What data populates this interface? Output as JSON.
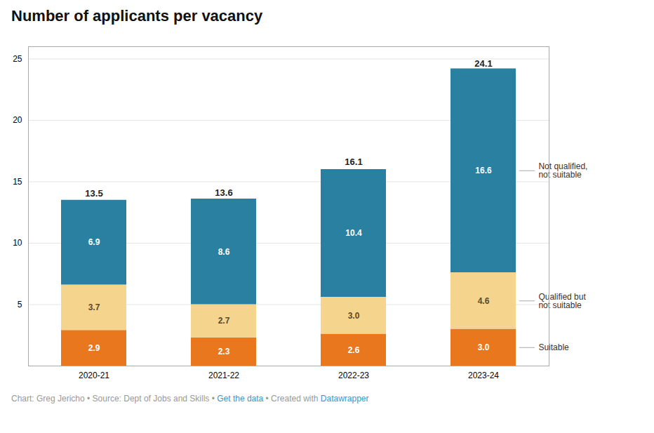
{
  "chart_data": {
    "type": "bar",
    "stacked": true,
    "title": "Number of applicants per vacancy",
    "categories": [
      "2020-21",
      "2021-22",
      "2022-23",
      "2023-24"
    ],
    "series": [
      {
        "name": "Suitable",
        "color": "#e8771e",
        "values": [
          2.9,
          2.3,
          2.6,
          3.0
        ],
        "value_labels": [
          "2.9",
          "2.3",
          "2.6",
          "3.0"
        ]
      },
      {
        "name": "Qualified but\nnot suitable",
        "color": "#f5d48e",
        "values": [
          3.7,
          2.7,
          3.0,
          4.6
        ],
        "value_labels": [
          "3.7",
          "2.7",
          "3.0",
          "4.6"
        ]
      },
      {
        "name": "Not qualified,\nnot suitable",
        "color": "#2980a0",
        "values": [
          6.9,
          8.6,
          10.4,
          16.6
        ],
        "value_labels": [
          "6.9",
          "8.6",
          "10.4",
          "16.6"
        ]
      }
    ],
    "totals": [
      13.5,
      13.6,
      16.1,
      24.1
    ],
    "ylim": [
      0,
      26
    ],
    "yticks": [
      5,
      10,
      15,
      20,
      25
    ],
    "grid": true,
    "data_labels": true,
    "footer": [
      {
        "text": "Chart: Greg Jericho • Source: Dept of Jobs and Skills • ",
        "color": "#999999"
      },
      {
        "text": "Get the data",
        "color": "#3399cc"
      },
      {
        "text": " • Created with ",
        "color": "#999999"
      },
      {
        "text": "Datawrapper",
        "color": "#3399cc"
      }
    ]
  }
}
